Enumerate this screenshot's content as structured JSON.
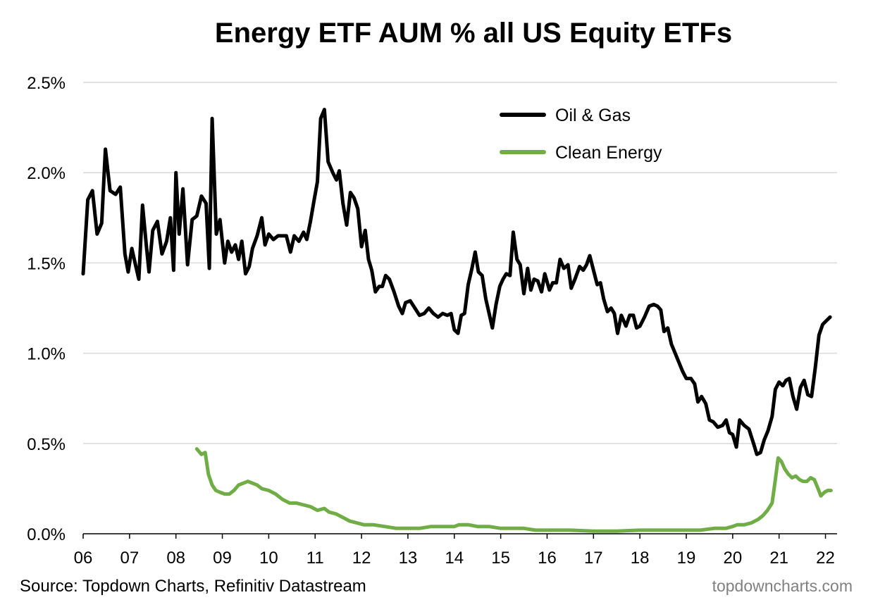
{
  "chart_data": {
    "type": "line",
    "title": "Energy ETF AUM % all US Equity ETFs",
    "xlabel": "",
    "ylabel": "",
    "xlim": [
      2006,
      2022.25
    ],
    "ylim": [
      0,
      2.5
    ],
    "x_ticks": [
      {
        "value": 2006,
        "label": "06"
      },
      {
        "value": 2007,
        "label": "07"
      },
      {
        "value": 2008,
        "label": "08"
      },
      {
        "value": 2009,
        "label": "09"
      },
      {
        "value": 2010,
        "label": "10"
      },
      {
        "value": 2011,
        "label": "11"
      },
      {
        "value": 2012,
        "label": "12"
      },
      {
        "value": 2013,
        "label": "13"
      },
      {
        "value": 2014,
        "label": "14"
      },
      {
        "value": 2015,
        "label": "15"
      },
      {
        "value": 2016,
        "label": "16"
      },
      {
        "value": 2017,
        "label": "17"
      },
      {
        "value": 2018,
        "label": "18"
      },
      {
        "value": 2019,
        "label": "19"
      },
      {
        "value": 2020,
        "label": "20"
      },
      {
        "value": 2021,
        "label": "21"
      },
      {
        "value": 2022,
        "label": "22"
      }
    ],
    "y_ticks": [
      {
        "value": 0.0,
        "label": "0.0%"
      },
      {
        "value": 0.5,
        "label": "0.5%"
      },
      {
        "value": 1.0,
        "label": "1.0%"
      },
      {
        "value": 1.5,
        "label": "1.5%"
      },
      {
        "value": 2.0,
        "label": "2.0%"
      },
      {
        "value": 2.5,
        "label": "2.5%"
      }
    ],
    "grid": true,
    "legend_position": "top-right",
    "series": [
      {
        "name": "Oil & Gas",
        "color": "#000000",
        "points": [
          [
            2006.0,
            1.44
          ],
          [
            2006.1,
            1.85
          ],
          [
            2006.2,
            1.9
          ],
          [
            2006.3,
            1.66
          ],
          [
            2006.4,
            1.72
          ],
          [
            2006.48,
            2.13
          ],
          [
            2006.58,
            1.9
          ],
          [
            2006.7,
            1.88
          ],
          [
            2006.8,
            1.92
          ],
          [
            2006.9,
            1.55
          ],
          [
            2006.97,
            1.45
          ],
          [
            2007.05,
            1.58
          ],
          [
            2007.12,
            1.5
          ],
          [
            2007.2,
            1.41
          ],
          [
            2007.28,
            1.82
          ],
          [
            2007.36,
            1.6
          ],
          [
            2007.42,
            1.45
          ],
          [
            2007.5,
            1.68
          ],
          [
            2007.6,
            1.73
          ],
          [
            2007.7,
            1.55
          ],
          [
            2007.8,
            1.62
          ],
          [
            2007.88,
            1.75
          ],
          [
            2007.95,
            1.46
          ],
          [
            2008.0,
            2.0
          ],
          [
            2008.07,
            1.66
          ],
          [
            2008.15,
            1.91
          ],
          [
            2008.25,
            1.49
          ],
          [
            2008.35,
            1.74
          ],
          [
            2008.45,
            1.76
          ],
          [
            2008.55,
            1.87
          ],
          [
            2008.65,
            1.83
          ],
          [
            2008.72,
            1.47
          ],
          [
            2008.78,
            2.3
          ],
          [
            2008.87,
            1.66
          ],
          [
            2008.95,
            1.74
          ],
          [
            2009.05,
            1.5
          ],
          [
            2009.12,
            1.62
          ],
          [
            2009.2,
            1.56
          ],
          [
            2009.28,
            1.6
          ],
          [
            2009.35,
            1.52
          ],
          [
            2009.42,
            1.62
          ],
          [
            2009.5,
            1.44
          ],
          [
            2009.58,
            1.48
          ],
          [
            2009.65,
            1.58
          ],
          [
            2009.75,
            1.65
          ],
          [
            2009.85,
            1.75
          ],
          [
            2009.92,
            1.6
          ],
          [
            2010.0,
            1.66
          ],
          [
            2010.1,
            1.63
          ],
          [
            2010.2,
            1.65
          ],
          [
            2010.3,
            1.65
          ],
          [
            2010.38,
            1.65
          ],
          [
            2010.47,
            1.56
          ],
          [
            2010.55,
            1.65
          ],
          [
            2010.65,
            1.62
          ],
          [
            2010.75,
            1.67
          ],
          [
            2010.82,
            1.63
          ],
          [
            2010.9,
            1.73
          ],
          [
            2010.98,
            1.85
          ],
          [
            2011.05,
            1.95
          ],
          [
            2011.12,
            2.3
          ],
          [
            2011.2,
            2.35
          ],
          [
            2011.28,
            2.06
          ],
          [
            2011.38,
            2.0
          ],
          [
            2011.46,
            1.96
          ],
          [
            2011.52,
            2.01
          ],
          [
            2011.6,
            1.83
          ],
          [
            2011.68,
            1.71
          ],
          [
            2011.76,
            1.89
          ],
          [
            2011.84,
            1.86
          ],
          [
            2011.92,
            1.8
          ],
          [
            2012.0,
            1.59
          ],
          [
            2012.08,
            1.68
          ],
          [
            2012.15,
            1.52
          ],
          [
            2012.22,
            1.46
          ],
          [
            2012.3,
            1.34
          ],
          [
            2012.38,
            1.37
          ],
          [
            2012.45,
            1.37
          ],
          [
            2012.52,
            1.43
          ],
          [
            2012.6,
            1.41
          ],
          [
            2012.7,
            1.34
          ],
          [
            2012.8,
            1.26
          ],
          [
            2012.88,
            1.22
          ],
          [
            2012.95,
            1.28
          ],
          [
            2013.05,
            1.29
          ],
          [
            2013.15,
            1.25
          ],
          [
            2013.25,
            1.21
          ],
          [
            2013.35,
            1.22
          ],
          [
            2013.45,
            1.25
          ],
          [
            2013.55,
            1.22
          ],
          [
            2013.65,
            1.2
          ],
          [
            2013.75,
            1.22
          ],
          [
            2013.85,
            1.21
          ],
          [
            2013.93,
            1.22
          ],
          [
            2014.0,
            1.13
          ],
          [
            2014.08,
            1.11
          ],
          [
            2014.15,
            1.21
          ],
          [
            2014.22,
            1.22
          ],
          [
            2014.3,
            1.38
          ],
          [
            2014.38,
            1.47
          ],
          [
            2014.45,
            1.56
          ],
          [
            2014.52,
            1.45
          ],
          [
            2014.6,
            1.43
          ],
          [
            2014.68,
            1.3
          ],
          [
            2014.75,
            1.22
          ],
          [
            2014.82,
            1.14
          ],
          [
            2014.9,
            1.27
          ],
          [
            2014.98,
            1.37
          ],
          [
            2015.05,
            1.41
          ],
          [
            2015.12,
            1.44
          ],
          [
            2015.2,
            1.43
          ],
          [
            2015.27,
            1.67
          ],
          [
            2015.35,
            1.52
          ],
          [
            2015.42,
            1.49
          ],
          [
            2015.5,
            1.33
          ],
          [
            2015.58,
            1.47
          ],
          [
            2015.65,
            1.35
          ],
          [
            2015.72,
            1.41
          ],
          [
            2015.8,
            1.4
          ],
          [
            2015.88,
            1.34
          ],
          [
            2015.95,
            1.44
          ],
          [
            2016.05,
            1.35
          ],
          [
            2016.12,
            1.39
          ],
          [
            2016.2,
            1.39
          ],
          [
            2016.28,
            1.52
          ],
          [
            2016.36,
            1.47
          ],
          [
            2016.45,
            1.49
          ],
          [
            2016.52,
            1.36
          ],
          [
            2016.6,
            1.41
          ],
          [
            2016.7,
            1.48
          ],
          [
            2016.78,
            1.46
          ],
          [
            2016.85,
            1.49
          ],
          [
            2016.92,
            1.54
          ],
          [
            2017.0,
            1.46
          ],
          [
            2017.08,
            1.38
          ],
          [
            2017.15,
            1.39
          ],
          [
            2017.22,
            1.3
          ],
          [
            2017.3,
            1.23
          ],
          [
            2017.38,
            1.25
          ],
          [
            2017.45,
            1.22
          ],
          [
            2017.52,
            1.11
          ],
          [
            2017.6,
            1.21
          ],
          [
            2017.7,
            1.15
          ],
          [
            2017.78,
            1.21
          ],
          [
            2017.86,
            1.21
          ],
          [
            2017.93,
            1.14
          ],
          [
            2018.0,
            1.15
          ],
          [
            2018.1,
            1.2
          ],
          [
            2018.2,
            1.26
          ],
          [
            2018.3,
            1.27
          ],
          [
            2018.38,
            1.26
          ],
          [
            2018.45,
            1.24
          ],
          [
            2018.52,
            1.12
          ],
          [
            2018.6,
            1.14
          ],
          [
            2018.68,
            1.05
          ],
          [
            2018.76,
            1.0
          ],
          [
            2018.84,
            0.95
          ],
          [
            2018.92,
            0.9
          ],
          [
            2019.0,
            0.86
          ],
          [
            2019.1,
            0.86
          ],
          [
            2019.18,
            0.83
          ],
          [
            2019.25,
            0.73
          ],
          [
            2019.33,
            0.76
          ],
          [
            2019.42,
            0.72
          ],
          [
            2019.5,
            0.63
          ],
          [
            2019.58,
            0.62
          ],
          [
            2019.68,
            0.59
          ],
          [
            2019.78,
            0.6
          ],
          [
            2019.86,
            0.63
          ],
          [
            2019.93,
            0.56
          ],
          [
            2020.0,
            0.55
          ],
          [
            2020.08,
            0.48
          ],
          [
            2020.15,
            0.63
          ],
          [
            2020.25,
            0.6
          ],
          [
            2020.35,
            0.58
          ],
          [
            2020.45,
            0.5
          ],
          [
            2020.52,
            0.44
          ],
          [
            2020.6,
            0.45
          ],
          [
            2020.68,
            0.52
          ],
          [
            2020.76,
            0.57
          ],
          [
            2020.85,
            0.65
          ],
          [
            2020.92,
            0.8
          ],
          [
            2021.0,
            0.84
          ],
          [
            2021.08,
            0.82
          ],
          [
            2021.15,
            0.85
          ],
          [
            2021.22,
            0.86
          ],
          [
            2021.3,
            0.76
          ],
          [
            2021.38,
            0.69
          ],
          [
            2021.46,
            0.81
          ],
          [
            2021.54,
            0.85
          ],
          [
            2021.62,
            0.77
          ],
          [
            2021.7,
            0.76
          ],
          [
            2021.78,
            0.92
          ],
          [
            2021.86,
            1.1
          ],
          [
            2021.94,
            1.16
          ],
          [
            2022.02,
            1.18
          ],
          [
            2022.1,
            1.2
          ]
        ]
      },
      {
        "name": "Clean Energy",
        "color": "#70ad47",
        "points": [
          [
            2008.45,
            0.47
          ],
          [
            2008.55,
            0.44
          ],
          [
            2008.63,
            0.45
          ],
          [
            2008.7,
            0.33
          ],
          [
            2008.78,
            0.27
          ],
          [
            2008.86,
            0.24
          ],
          [
            2008.95,
            0.23
          ],
          [
            2009.05,
            0.22
          ],
          [
            2009.15,
            0.22
          ],
          [
            2009.25,
            0.24
          ],
          [
            2009.35,
            0.27
          ],
          [
            2009.45,
            0.28
          ],
          [
            2009.55,
            0.29
          ],
          [
            2009.65,
            0.28
          ],
          [
            2009.75,
            0.27
          ],
          [
            2009.85,
            0.25
          ],
          [
            2010.0,
            0.24
          ],
          [
            2010.15,
            0.22
          ],
          [
            2010.3,
            0.19
          ],
          [
            2010.45,
            0.17
          ],
          [
            2010.6,
            0.17
          ],
          [
            2010.75,
            0.16
          ],
          [
            2010.9,
            0.15
          ],
          [
            2011.05,
            0.13
          ],
          [
            2011.2,
            0.14
          ],
          [
            2011.3,
            0.12
          ],
          [
            2011.45,
            0.11
          ],
          [
            2011.6,
            0.09
          ],
          [
            2011.75,
            0.07
          ],
          [
            2011.9,
            0.06
          ],
          [
            2012.05,
            0.05
          ],
          [
            2012.25,
            0.05
          ],
          [
            2012.5,
            0.04
          ],
          [
            2012.75,
            0.03
          ],
          [
            2013.0,
            0.03
          ],
          [
            2013.25,
            0.03
          ],
          [
            2013.5,
            0.04
          ],
          [
            2013.75,
            0.04
          ],
          [
            2014.0,
            0.04
          ],
          [
            2014.1,
            0.05
          ],
          [
            2014.3,
            0.05
          ],
          [
            2014.5,
            0.04
          ],
          [
            2014.75,
            0.04
          ],
          [
            2015.0,
            0.03
          ],
          [
            2015.25,
            0.03
          ],
          [
            2015.5,
            0.03
          ],
          [
            2015.75,
            0.02
          ],
          [
            2016.0,
            0.02
          ],
          [
            2016.5,
            0.02
          ],
          [
            2017.0,
            0.015
          ],
          [
            2017.5,
            0.015
          ],
          [
            2018.0,
            0.02
          ],
          [
            2018.5,
            0.02
          ],
          [
            2019.0,
            0.02
          ],
          [
            2019.3,
            0.02
          ],
          [
            2019.6,
            0.03
          ],
          [
            2019.85,
            0.03
          ],
          [
            2020.0,
            0.04
          ],
          [
            2020.1,
            0.05
          ],
          [
            2020.25,
            0.05
          ],
          [
            2020.4,
            0.06
          ],
          [
            2020.55,
            0.08
          ],
          [
            2020.65,
            0.1
          ],
          [
            2020.75,
            0.13
          ],
          [
            2020.85,
            0.17
          ],
          [
            2020.92,
            0.3
          ],
          [
            2020.98,
            0.42
          ],
          [
            2021.05,
            0.4
          ],
          [
            2021.12,
            0.36
          ],
          [
            2021.2,
            0.33
          ],
          [
            2021.28,
            0.31
          ],
          [
            2021.36,
            0.32
          ],
          [
            2021.44,
            0.3
          ],
          [
            2021.52,
            0.29
          ],
          [
            2021.6,
            0.29
          ],
          [
            2021.68,
            0.31
          ],
          [
            2021.76,
            0.3
          ],
          [
            2021.84,
            0.25
          ],
          [
            2021.9,
            0.21
          ],
          [
            2021.98,
            0.23
          ],
          [
            2022.05,
            0.24
          ],
          [
            2022.12,
            0.24
          ]
        ]
      }
    ]
  },
  "footer": {
    "source": "Source: Topdown Charts, Refinitiv Datastream",
    "brand": "topdowncharts.com"
  }
}
